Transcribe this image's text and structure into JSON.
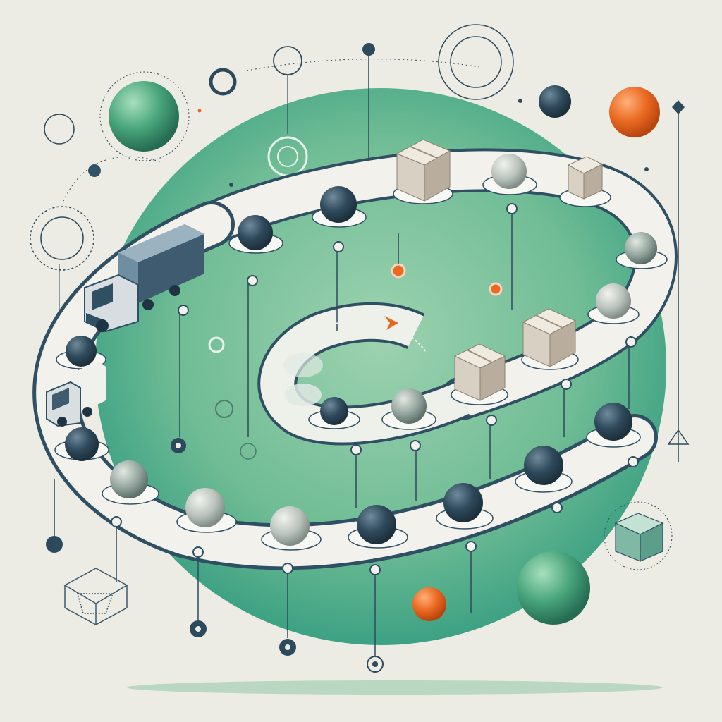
{
  "colors": {
    "background": "#ecebe4",
    "disc_green": "#63b38e",
    "disc_green_light": "#a6d6b3",
    "belt_surface": "#f2f1ec",
    "belt_edge": "#2f4f63",
    "ink": "#2d4a5c",
    "sphere_navy": "#2c4759",
    "sphere_grey": "#b8c2bc",
    "sphere_green": "#4aa77d",
    "sphere_orange": "#e8661f",
    "box_front": "#d8d0c2",
    "box_top": "#efeae0",
    "box_side": "#b9ae9d",
    "truck_blue": "#3e5b70"
  },
  "icons": [
    "truck-icon",
    "delivery-van-icon",
    "cardboard-box-icon",
    "wireframe-cube-icon",
    "glass-cube-icon",
    "orange-arrow-icon",
    "target-circle-icon",
    "pin-node-icon",
    "sphere-icon"
  ]
}
